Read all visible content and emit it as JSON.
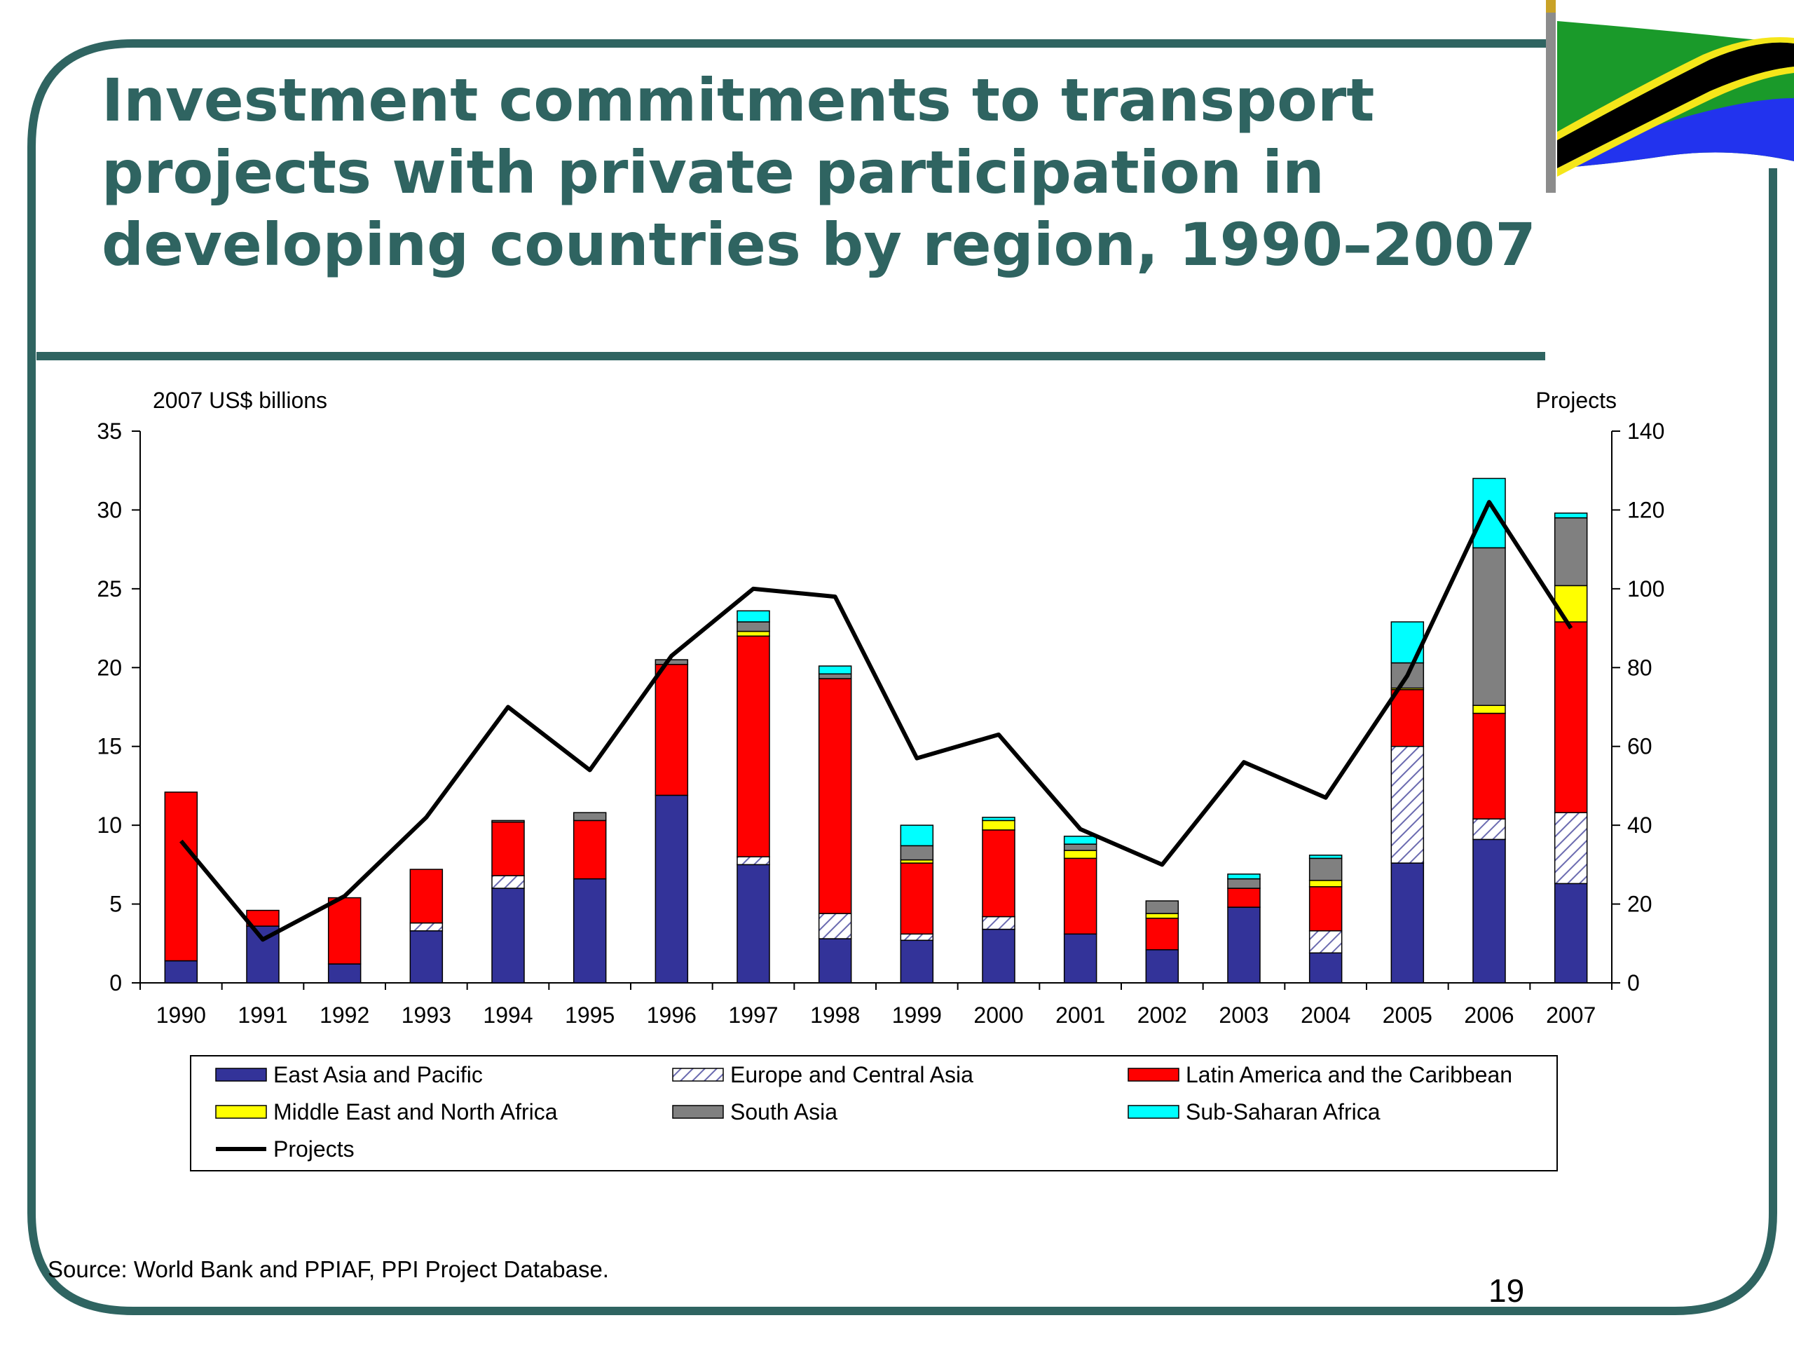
{
  "slide": {
    "title": "Investment commitments to transport projects with private participation in developing countries by region, 1990–2007",
    "source": "Source: World Bank and PPIAF, PPI Project Database.",
    "page_number": "19",
    "frame_color": "#2f6461",
    "flag_icon": "tanzania-flag-icon"
  },
  "chart_data": {
    "type": "bar",
    "stacked": true,
    "left_axis_label": "2007 US$ billions",
    "right_axis_label": "Projects",
    "ylim": [
      0,
      35
    ],
    "y_ticks": [
      0,
      5,
      10,
      15,
      20,
      25,
      30,
      35
    ],
    "y2lim": [
      0,
      140
    ],
    "y2_ticks": [
      0,
      20,
      40,
      60,
      80,
      100,
      120,
      140
    ],
    "grid": false,
    "legend_position": "bottom",
    "categories": [
      "1990",
      "1991",
      "1992",
      "1993",
      "1994",
      "1995",
      "1996",
      "1997",
      "1998",
      "1999",
      "2000",
      "2001",
      "2002",
      "2003",
      "2004",
      "2005",
      "2006",
      "2007"
    ],
    "series": [
      {
        "name": "East Asia and Pacific",
        "color": "#333399",
        "pattern": "solid",
        "values": [
          1.4,
          3.6,
          1.2,
          3.3,
          6.0,
          6.6,
          11.9,
          7.5,
          2.8,
          2.7,
          3.4,
          3.1,
          2.1,
          4.8,
          1.9,
          7.6,
          9.1,
          6.3
        ]
      },
      {
        "name": "Europe and Central Asia",
        "color": "#9999cc",
        "pattern": "hatch",
        "values": [
          0,
          0,
          0,
          0.5,
          0.8,
          0,
          0,
          0.5,
          1.6,
          0.4,
          0.8,
          0,
          0,
          0,
          1.4,
          7.4,
          1.3,
          4.5
        ]
      },
      {
        "name": "Latin America and the Caribbean",
        "color": "#ff0000",
        "pattern": "solid",
        "values": [
          10.7,
          1.0,
          4.2,
          3.4,
          3.4,
          3.7,
          8.3,
          14.0,
          14.9,
          4.5,
          5.5,
          4.8,
          2.0,
          1.2,
          2.8,
          3.6,
          6.7,
          12.1
        ]
      },
      {
        "name": "Middle East and North Africa",
        "color": "#ffff00",
        "pattern": "solid",
        "values": [
          0,
          0,
          0,
          0,
          0,
          0,
          0,
          0.3,
          0,
          0.2,
          0.6,
          0.5,
          0.3,
          0,
          0.4,
          0.1,
          0.5,
          2.3
        ]
      },
      {
        "name": "South Asia",
        "color": "#808080",
        "pattern": "solid",
        "values": [
          0,
          0,
          0,
          0,
          0.1,
          0.5,
          0.3,
          0.6,
          0.3,
          0.9,
          0,
          0.4,
          0.8,
          0.6,
          1.4,
          1.6,
          10.0,
          4.3
        ]
      },
      {
        "name": "Sub-Saharan Africa",
        "color": "#00ffff",
        "pattern": "solid",
        "values": [
          0,
          0,
          0,
          0,
          0,
          0,
          0,
          0.7,
          0.5,
          1.3,
          0.2,
          0.5,
          0,
          0.3,
          0.2,
          2.6,
          4.4,
          0.3
        ]
      }
    ],
    "line_series": {
      "name": "Projects",
      "color": "#000000",
      "axis": "right",
      "values": [
        36,
        11,
        22,
        42,
        70,
        54,
        83,
        100,
        98,
        57,
        63,
        39,
        30,
        56,
        47,
        78,
        122,
        90
      ]
    }
  }
}
